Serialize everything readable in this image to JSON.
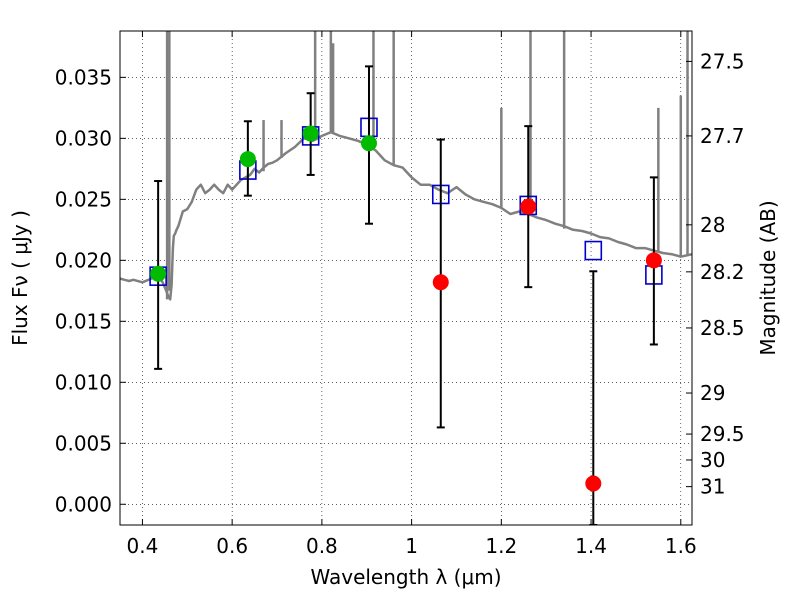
{
  "chart_data": {
    "type": "scatter",
    "xlabel": "Wavelength  λ (μm)",
    "ylabel": "Flux  Fν  ( μJy )",
    "y2label": "Magnitude (AB)",
    "xlim": [
      0.35,
      1.625
    ],
    "ylim": [
      -0.0017,
      0.0388
    ],
    "grid": true,
    "x_ticks": [
      {
        "value": 0.4,
        "label": "0.4"
      },
      {
        "value": 0.6,
        "label": "0.6"
      },
      {
        "value": 0.8,
        "label": "0.8"
      },
      {
        "value": 1.0,
        "label": "1"
      },
      {
        "value": 1.2,
        "label": "1.2"
      },
      {
        "value": 1.4,
        "label": "1.4"
      },
      {
        "value": 1.6,
        "label": "1.6"
      }
    ],
    "y_ticks": [
      {
        "value": 0.0,
        "label": "0.000"
      },
      {
        "value": 0.005,
        "label": "0.005"
      },
      {
        "value": 0.01,
        "label": "0.010"
      },
      {
        "value": 0.015,
        "label": "0.015"
      },
      {
        "value": 0.02,
        "label": "0.020"
      },
      {
        "value": 0.025,
        "label": "0.025"
      },
      {
        "value": 0.03,
        "label": "0.030"
      },
      {
        "value": 0.035,
        "label": "0.035"
      }
    ],
    "mag_ticks": [
      {
        "value": 27.5,
        "label": "27.5"
      },
      {
        "value": 27.7,
        "label": "27.7"
      },
      {
        "value": 28.0,
        "label": "28"
      },
      {
        "value": 28.2,
        "label": "28.2"
      },
      {
        "value": 28.5,
        "label": "28.5"
      },
      {
        "value": 29.0,
        "label": "29"
      },
      {
        "value": 29.5,
        "label": "29.5"
      },
      {
        "value": 30.0,
        "label": "30"
      },
      {
        "value": 31.0,
        "label": "31"
      }
    ],
    "model_spectrum": {
      "color": "#808080",
      "x": [
        0.35,
        0.37,
        0.38,
        0.4,
        0.42,
        0.435,
        0.445,
        0.452,
        0.458,
        0.462,
        0.465,
        0.468,
        0.47,
        0.473,
        0.476,
        0.48,
        0.49,
        0.5,
        0.51,
        0.52,
        0.53,
        0.54,
        0.55,
        0.56,
        0.57,
        0.58,
        0.59,
        0.6,
        0.61,
        0.62,
        0.63,
        0.64,
        0.65,
        0.66,
        0.67,
        0.68,
        0.69,
        0.7,
        0.72,
        0.74,
        0.76,
        0.78,
        0.8,
        0.82,
        0.84,
        0.86,
        0.88,
        0.9,
        0.92,
        0.94,
        0.96,
        0.98,
        1.0,
        1.02,
        1.04,
        1.06,
        1.08,
        1.1,
        1.12,
        1.14,
        1.16,
        1.18,
        1.2,
        1.22,
        1.24,
        1.26,
        1.28,
        1.3,
        1.32,
        1.34,
        1.36,
        1.38,
        1.4,
        1.42,
        1.44,
        1.46,
        1.48,
        1.5,
        1.52,
        1.54,
        1.56,
        1.58,
        1.6,
        1.625
      ],
      "y": [
        0.0185,
        0.0183,
        0.0184,
        0.0182,
        0.0185,
        0.0187,
        0.0182,
        0.0176,
        0.017,
        0.0168,
        0.018,
        0.021,
        0.022,
        0.0222,
        0.0225,
        0.0228,
        0.024,
        0.0242,
        0.0248,
        0.0258,
        0.0262,
        0.0255,
        0.0258,
        0.0262,
        0.0258,
        0.0255,
        0.0262,
        0.0258,
        0.0262,
        0.0266,
        0.0268,
        0.027,
        0.0275,
        0.0272,
        0.0276,
        0.0279,
        0.028,
        0.0282,
        0.0288,
        0.0293,
        0.03,
        0.0298,
        0.0302,
        0.0305,
        0.0302,
        0.03,
        0.0298,
        0.0295,
        0.029,
        0.0282,
        0.0278,
        0.0276,
        0.0268,
        0.0262,
        0.0262,
        0.0258,
        0.0255,
        0.026,
        0.0254,
        0.025,
        0.0248,
        0.0246,
        0.0243,
        0.0238,
        0.024,
        0.0238,
        0.0235,
        0.0233,
        0.023,
        0.0228,
        0.0225,
        0.0224,
        0.0222,
        0.0219,
        0.0218,
        0.0215,
        0.0213,
        0.021,
        0.021,
        0.0208,
        0.0206,
        0.0205,
        0.0203,
        0.0205
      ]
    },
    "model_spikes": [
      {
        "x": 0.455,
        "ymin": 0.0168,
        "ymax": 0.039
      },
      {
        "x": 0.46,
        "ymin": 0.0175,
        "ymax": 0.039
      },
      {
        "x": 0.67,
        "ymin": 0.0273,
        "ymax": 0.0315
      },
      {
        "x": 0.71,
        "ymin": 0.0284,
        "ymax": 0.0315
      },
      {
        "x": 0.785,
        "ymin": 0.0298,
        "ymax": 0.039
      },
      {
        "x": 0.82,
        "ymin": 0.0305,
        "ymax": 0.039
      },
      {
        "x": 0.825,
        "ymin": 0.0305,
        "ymax": 0.0378
      },
      {
        "x": 0.915,
        "ymin": 0.0294,
        "ymax": 0.039
      },
      {
        "x": 0.96,
        "ymin": 0.0278,
        "ymax": 0.039
      },
      {
        "x": 1.2,
        "ymin": 0.0243,
        "ymax": 0.0325
      },
      {
        "x": 1.265,
        "ymin": 0.0237,
        "ymax": 0.039
      },
      {
        "x": 1.34,
        "ymin": 0.0226,
        "ymax": 0.039
      },
      {
        "x": 1.55,
        "ymin": 0.0207,
        "ymax": 0.0325
      },
      {
        "x": 1.6,
        "ymin": 0.0203,
        "ymax": 0.0335
      },
      {
        "x": 1.615,
        "ymin": 0.0204,
        "ymax": 0.039
      }
    ],
    "model_photometry": {
      "marker": "open-square",
      "color": "#0000cc",
      "points": [
        {
          "x": 0.435,
          "y": 0.0187
        },
        {
          "x": 0.635,
          "y": 0.0274
        },
        {
          "x": 0.775,
          "y": 0.0302
        },
        {
          "x": 0.905,
          "y": 0.0309
        },
        {
          "x": 1.065,
          "y": 0.0254
        },
        {
          "x": 1.26,
          "y": 0.0245
        },
        {
          "x": 1.405,
          "y": 0.0208
        },
        {
          "x": 1.54,
          "y": 0.0188
        }
      ]
    },
    "observed_photometry": [
      {
        "x": 0.435,
        "y": 0.0189,
        "err_lo": 0.0111,
        "err_hi": 0.0265,
        "color": "#00bb00"
      },
      {
        "x": 0.635,
        "y": 0.0283,
        "err_lo": 0.0253,
        "err_hi": 0.0314,
        "color": "#00bb00"
      },
      {
        "x": 0.775,
        "y": 0.0304,
        "err_lo": 0.027,
        "err_hi": 0.0337,
        "color": "#00bb00"
      },
      {
        "x": 0.905,
        "y": 0.0296,
        "err_lo": 0.023,
        "err_hi": 0.0359,
        "color": "#00bb00"
      },
      {
        "x": 1.065,
        "y": 0.0182,
        "err_lo": 0.0063,
        "err_hi": 0.0299,
        "color": "#ff0000"
      },
      {
        "x": 1.26,
        "y": 0.0244,
        "err_lo": 0.0178,
        "err_hi": 0.031,
        "color": "#ff0000"
      },
      {
        "x": 1.405,
        "y": 0.0017,
        "err_lo": -0.0017,
        "err_hi": 0.0191,
        "color": "#ff0000"
      },
      {
        "x": 1.54,
        "y": 0.02,
        "err_lo": 0.0131,
        "err_hi": 0.0268,
        "color": "#ff0000"
      }
    ]
  }
}
